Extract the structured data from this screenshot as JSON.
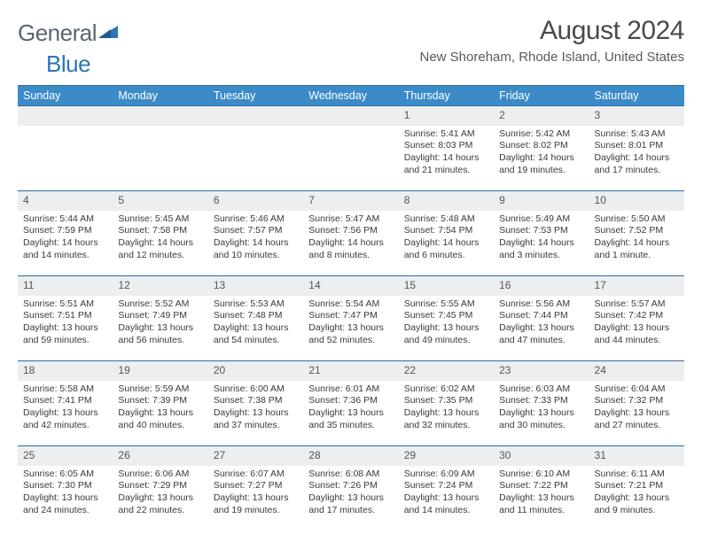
{
  "logo": {
    "part1": "General",
    "part2": "Blue"
  },
  "title": "August 2024",
  "subtitle": "New Shoreham, Rhode Island, United States",
  "columns": [
    "Sunday",
    "Monday",
    "Tuesday",
    "Wednesday",
    "Thursday",
    "Friday",
    "Saturday"
  ],
  "colors": {
    "header_bg": "#3b8bc9",
    "header_text": "#ffffff",
    "border": "#2e6da4",
    "daynum_bg": "#eceeef",
    "text": "#3a3a3a",
    "logo_gray": "#5a6570",
    "logo_blue": "#2e75b6"
  },
  "weeks": [
    [
      null,
      null,
      null,
      null,
      {
        "n": "1",
        "sr": "5:41 AM",
        "ss": "8:03 PM",
        "d": "14 hours and 21 minutes."
      },
      {
        "n": "2",
        "sr": "5:42 AM",
        "ss": "8:02 PM",
        "d": "14 hours and 19 minutes."
      },
      {
        "n": "3",
        "sr": "5:43 AM",
        "ss": "8:01 PM",
        "d": "14 hours and 17 minutes."
      }
    ],
    [
      {
        "n": "4",
        "sr": "5:44 AM",
        "ss": "7:59 PM",
        "d": "14 hours and 14 minutes."
      },
      {
        "n": "5",
        "sr": "5:45 AM",
        "ss": "7:58 PM",
        "d": "14 hours and 12 minutes."
      },
      {
        "n": "6",
        "sr": "5:46 AM",
        "ss": "7:57 PM",
        "d": "14 hours and 10 minutes."
      },
      {
        "n": "7",
        "sr": "5:47 AM",
        "ss": "7:56 PM",
        "d": "14 hours and 8 minutes."
      },
      {
        "n": "8",
        "sr": "5:48 AM",
        "ss": "7:54 PM",
        "d": "14 hours and 6 minutes."
      },
      {
        "n": "9",
        "sr": "5:49 AM",
        "ss": "7:53 PM",
        "d": "14 hours and 3 minutes."
      },
      {
        "n": "10",
        "sr": "5:50 AM",
        "ss": "7:52 PM",
        "d": "14 hours and 1 minute."
      }
    ],
    [
      {
        "n": "11",
        "sr": "5:51 AM",
        "ss": "7:51 PM",
        "d": "13 hours and 59 minutes."
      },
      {
        "n": "12",
        "sr": "5:52 AM",
        "ss": "7:49 PM",
        "d": "13 hours and 56 minutes."
      },
      {
        "n": "13",
        "sr": "5:53 AM",
        "ss": "7:48 PM",
        "d": "13 hours and 54 minutes."
      },
      {
        "n": "14",
        "sr": "5:54 AM",
        "ss": "7:47 PM",
        "d": "13 hours and 52 minutes."
      },
      {
        "n": "15",
        "sr": "5:55 AM",
        "ss": "7:45 PM",
        "d": "13 hours and 49 minutes."
      },
      {
        "n": "16",
        "sr": "5:56 AM",
        "ss": "7:44 PM",
        "d": "13 hours and 47 minutes."
      },
      {
        "n": "17",
        "sr": "5:57 AM",
        "ss": "7:42 PM",
        "d": "13 hours and 44 minutes."
      }
    ],
    [
      {
        "n": "18",
        "sr": "5:58 AM",
        "ss": "7:41 PM",
        "d": "13 hours and 42 minutes."
      },
      {
        "n": "19",
        "sr": "5:59 AM",
        "ss": "7:39 PM",
        "d": "13 hours and 40 minutes."
      },
      {
        "n": "20",
        "sr": "6:00 AM",
        "ss": "7:38 PM",
        "d": "13 hours and 37 minutes."
      },
      {
        "n": "21",
        "sr": "6:01 AM",
        "ss": "7:36 PM",
        "d": "13 hours and 35 minutes."
      },
      {
        "n": "22",
        "sr": "6:02 AM",
        "ss": "7:35 PM",
        "d": "13 hours and 32 minutes."
      },
      {
        "n": "23",
        "sr": "6:03 AM",
        "ss": "7:33 PM",
        "d": "13 hours and 30 minutes."
      },
      {
        "n": "24",
        "sr": "6:04 AM",
        "ss": "7:32 PM",
        "d": "13 hours and 27 minutes."
      }
    ],
    [
      {
        "n": "25",
        "sr": "6:05 AM",
        "ss": "7:30 PM",
        "d": "13 hours and 24 minutes."
      },
      {
        "n": "26",
        "sr": "6:06 AM",
        "ss": "7:29 PM",
        "d": "13 hours and 22 minutes."
      },
      {
        "n": "27",
        "sr": "6:07 AM",
        "ss": "7:27 PM",
        "d": "13 hours and 19 minutes."
      },
      {
        "n": "28",
        "sr": "6:08 AM",
        "ss": "7:26 PM",
        "d": "13 hours and 17 minutes."
      },
      {
        "n": "29",
        "sr": "6:09 AM",
        "ss": "7:24 PM",
        "d": "13 hours and 14 minutes."
      },
      {
        "n": "30",
        "sr": "6:10 AM",
        "ss": "7:22 PM",
        "d": "13 hours and 11 minutes."
      },
      {
        "n": "31",
        "sr": "6:11 AM",
        "ss": "7:21 PM",
        "d": "13 hours and 9 minutes."
      }
    ]
  ],
  "labels": {
    "sunrise": "Sunrise:",
    "sunset": "Sunset:",
    "daylight": "Daylight:"
  }
}
